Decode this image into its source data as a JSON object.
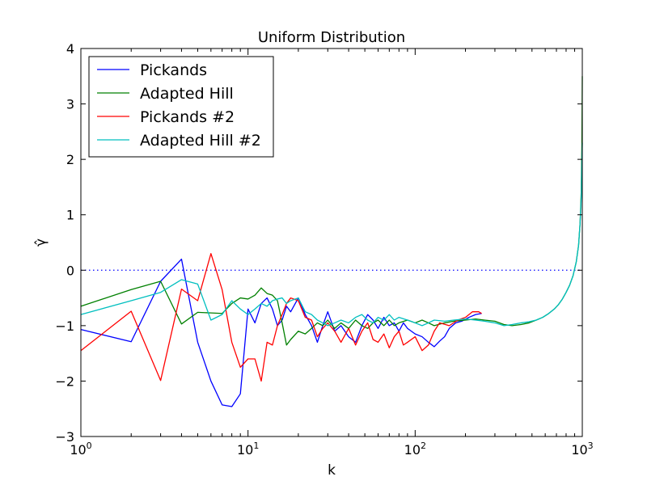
{
  "chart_data": {
    "type": "line",
    "title": "Uniform Distribution",
    "xlabel": "k",
    "ylabel": "γ̂",
    "x_scale": "log",
    "xlim": [
      1,
      1000
    ],
    "ylim": [
      -3,
      4
    ],
    "x_ticks": [
      {
        "value": 1,
        "base": "10",
        "exp": "0"
      },
      {
        "value": 10,
        "base": "10",
        "exp": "1"
      },
      {
        "value": 100,
        "base": "10",
        "exp": "2"
      },
      {
        "value": 1000,
        "base": "10",
        "exp": "3"
      }
    ],
    "y_ticks": [
      {
        "value": -3,
        "label": "−3"
      },
      {
        "value": -2,
        "label": "−2"
      },
      {
        "value": -1,
        "label": "−1"
      },
      {
        "value": 0,
        "label": "0"
      },
      {
        "value": 1,
        "label": "1"
      },
      {
        "value": 2,
        "label": "2"
      },
      {
        "value": 3,
        "label": "3"
      },
      {
        "value": 4,
        "label": "4"
      }
    ],
    "grid": false,
    "legend": "top-left",
    "reference_line": {
      "y": 0,
      "style": "dotted",
      "color": "#0000ff"
    },
    "series": [
      {
        "name": "Pickands",
        "color": "#0000ff",
        "points": [
          [
            1,
            -1.07
          ],
          [
            2,
            -1.29
          ],
          [
            3,
            -0.2
          ],
          [
            4,
            0.2
          ],
          [
            5,
            -1.3
          ],
          [
            6,
            -2.0
          ],
          [
            7,
            -2.43
          ],
          [
            8,
            -2.46
          ],
          [
            9,
            -2.23
          ],
          [
            10,
            -0.7
          ],
          [
            11,
            -0.95
          ],
          [
            12,
            -0.6
          ],
          [
            13,
            -0.5
          ],
          [
            14,
            -0.7
          ],
          [
            15,
            -1.0
          ],
          [
            16,
            -0.9
          ],
          [
            17,
            -0.65
          ],
          [
            18,
            -0.75
          ],
          [
            20,
            -0.5
          ],
          [
            22,
            -0.8
          ],
          [
            24,
            -1.0
          ],
          [
            26,
            -1.3
          ],
          [
            28,
            -1.0
          ],
          [
            30,
            -0.75
          ],
          [
            33,
            -1.1
          ],
          [
            36,
            -1.0
          ],
          [
            40,
            -1.2
          ],
          [
            44,
            -1.3
          ],
          [
            48,
            -1.0
          ],
          [
            52,
            -0.8
          ],
          [
            56,
            -0.9
          ],
          [
            60,
            -1.05
          ],
          [
            65,
            -0.85
          ],
          [
            70,
            -1.0
          ],
          [
            75,
            -0.95
          ],
          [
            80,
            -1.1
          ],
          [
            85,
            -0.95
          ],
          [
            90,
            -1.05
          ],
          [
            100,
            -1.15
          ],
          [
            110,
            -1.2
          ],
          [
            120,
            -1.3
          ],
          [
            130,
            -1.38
          ],
          [
            140,
            -1.28
          ],
          [
            150,
            -1.2
          ],
          [
            160,
            -1.05
          ],
          [
            175,
            -0.95
          ],
          [
            190,
            -0.92
          ],
          [
            210,
            -0.85
          ],
          [
            230,
            -0.8
          ],
          [
            250,
            -0.78
          ]
        ]
      },
      {
        "name": "Adapted Hill",
        "color": "#008000",
        "points": [
          [
            1,
            -0.65
          ],
          [
            2,
            -0.35
          ],
          [
            3,
            -0.2
          ],
          [
            4,
            -0.97
          ],
          [
            5,
            -0.76
          ],
          [
            6,
            -0.77
          ],
          [
            7,
            -0.78
          ],
          [
            8,
            -0.6
          ],
          [
            9,
            -0.5
          ],
          [
            10,
            -0.52
          ],
          [
            11,
            -0.45
          ],
          [
            12,
            -0.32
          ],
          [
            13,
            -0.42
          ],
          [
            14,
            -0.45
          ],
          [
            15,
            -0.55
          ],
          [
            16,
            -0.95
          ],
          [
            17,
            -1.35
          ],
          [
            18,
            -1.25
          ],
          [
            20,
            -1.1
          ],
          [
            22,
            -1.15
          ],
          [
            24,
            -1.05
          ],
          [
            26,
            -0.95
          ],
          [
            28,
            -1.0
          ],
          [
            30,
            -0.9
          ],
          [
            33,
            -1.05
          ],
          [
            36,
            -0.95
          ],
          [
            40,
            -1.05
          ],
          [
            44,
            -0.9
          ],
          [
            48,
            -1.0
          ],
          [
            52,
            -1.05
          ],
          [
            56,
            -0.95
          ],
          [
            60,
            -0.9
          ],
          [
            65,
            -1.0
          ],
          [
            70,
            -0.9
          ],
          [
            75,
            -1.0
          ],
          [
            80,
            -0.95
          ],
          [
            90,
            -0.9
          ],
          [
            100,
            -0.95
          ],
          [
            110,
            -0.9
          ],
          [
            120,
            -0.95
          ],
          [
            130,
            -1.0
          ],
          [
            150,
            -0.95
          ],
          [
            170,
            -0.92
          ],
          [
            200,
            -0.9
          ],
          [
            230,
            -0.88
          ],
          [
            260,
            -0.9
          ],
          [
            300,
            -0.92
          ],
          [
            340,
            -0.98
          ],
          [
            380,
            -1.0
          ],
          [
            430,
            -0.98
          ],
          [
            480,
            -0.95
          ],
          [
            530,
            -0.9
          ],
          [
            580,
            -0.85
          ],
          [
            630,
            -0.78
          ],
          [
            680,
            -0.7
          ],
          [
            720,
            -0.62
          ],
          [
            760,
            -0.52
          ],
          [
            800,
            -0.4
          ],
          [
            840,
            -0.27
          ],
          [
            880,
            -0.1
          ],
          [
            920,
            0.15
          ],
          [
            950,
            0.45
          ],
          [
            970,
            0.85
          ],
          [
            985,
            1.4
          ],
          [
            995,
            2.3
          ],
          [
            1000,
            3.5
          ]
        ]
      },
      {
        "name": "Pickands #2",
        "color": "#ff0000",
        "points": [
          [
            1,
            -1.45
          ],
          [
            2,
            -0.74
          ],
          [
            3,
            -1.99
          ],
          [
            4,
            -0.34
          ],
          [
            5,
            -0.55
          ],
          [
            6,
            0.3
          ],
          [
            7,
            -0.35
          ],
          [
            8,
            -1.3
          ],
          [
            9,
            -1.75
          ],
          [
            10,
            -1.6
          ],
          [
            11,
            -1.6
          ],
          [
            12,
            -2.0
          ],
          [
            13,
            -1.3
          ],
          [
            14,
            -1.35
          ],
          [
            15,
            -1.0
          ],
          [
            16,
            -0.8
          ],
          [
            17,
            -0.6
          ],
          [
            18,
            -0.5
          ],
          [
            20,
            -0.55
          ],
          [
            22,
            -0.85
          ],
          [
            24,
            -0.9
          ],
          [
            26,
            -1.2
          ],
          [
            28,
            -1.05
          ],
          [
            30,
            -0.95
          ],
          [
            33,
            -1.1
          ],
          [
            36,
            -1.3
          ],
          [
            40,
            -1.05
          ],
          [
            44,
            -1.35
          ],
          [
            48,
            -1.1
          ],
          [
            52,
            -0.95
          ],
          [
            56,
            -1.25
          ],
          [
            60,
            -1.3
          ],
          [
            65,
            -1.15
          ],
          [
            70,
            -1.4
          ],
          [
            75,
            -1.2
          ],
          [
            80,
            -1.1
          ],
          [
            85,
            -1.35
          ],
          [
            90,
            -1.3
          ],
          [
            100,
            -1.2
          ],
          [
            110,
            -1.45
          ],
          [
            120,
            -1.35
          ],
          [
            130,
            -1.1
          ],
          [
            140,
            -0.95
          ],
          [
            160,
            -1.0
          ],
          [
            180,
            -0.9
          ],
          [
            200,
            -0.85
          ],
          [
            220,
            -0.75
          ],
          [
            240,
            -0.75
          ],
          [
            250,
            -0.78
          ]
        ]
      },
      {
        "name": "Adapted Hill #2",
        "color": "#00bfbf",
        "points": [
          [
            1,
            -0.8
          ],
          [
            2,
            -0.55
          ],
          [
            3,
            -0.4
          ],
          [
            4,
            -0.17
          ],
          [
            5,
            -0.25
          ],
          [
            6,
            -0.9
          ],
          [
            7,
            -0.8
          ],
          [
            8,
            -0.55
          ],
          [
            9,
            -0.7
          ],
          [
            10,
            -0.8
          ],
          [
            11,
            -0.7
          ],
          [
            12,
            -0.6
          ],
          [
            13,
            -0.65
          ],
          [
            14,
            -0.55
          ],
          [
            15,
            -0.52
          ],
          [
            16,
            -0.5
          ],
          [
            17,
            -0.6
          ],
          [
            18,
            -0.55
          ],
          [
            20,
            -0.5
          ],
          [
            22,
            -0.75
          ],
          [
            24,
            -0.8
          ],
          [
            26,
            -0.9
          ],
          [
            28,
            -0.95
          ],
          [
            30,
            -1.0
          ],
          [
            33,
            -0.95
          ],
          [
            36,
            -0.9
          ],
          [
            40,
            -0.95
          ],
          [
            44,
            -0.85
          ],
          [
            48,
            -0.8
          ],
          [
            52,
            -0.9
          ],
          [
            56,
            -0.95
          ],
          [
            60,
            -0.85
          ],
          [
            65,
            -0.9
          ],
          [
            70,
            -0.8
          ],
          [
            75,
            -0.9
          ],
          [
            80,
            -0.85
          ],
          [
            90,
            -0.9
          ],
          [
            100,
            -0.95
          ],
          [
            110,
            -1.0
          ],
          [
            120,
            -0.95
          ],
          [
            130,
            -0.9
          ],
          [
            150,
            -0.92
          ],
          [
            170,
            -0.9
          ],
          [
            200,
            -0.88
          ],
          [
            230,
            -0.9
          ],
          [
            260,
            -0.92
          ],
          [
            300,
            -0.95
          ],
          [
            340,
            -1.0
          ],
          [
            380,
            -0.98
          ],
          [
            430,
            -0.95
          ],
          [
            480,
            -0.93
          ],
          [
            530,
            -0.9
          ],
          [
            580,
            -0.85
          ],
          [
            630,
            -0.78
          ],
          [
            680,
            -0.7
          ],
          [
            720,
            -0.62
          ],
          [
            760,
            -0.52
          ],
          [
            800,
            -0.4
          ],
          [
            840,
            -0.27
          ],
          [
            880,
            -0.1
          ],
          [
            920,
            0.15
          ],
          [
            950,
            0.45
          ],
          [
            970,
            0.85
          ],
          [
            985,
            1.3
          ],
          [
            995,
            2.0
          ],
          [
            1000,
            2.3
          ]
        ]
      }
    ]
  }
}
